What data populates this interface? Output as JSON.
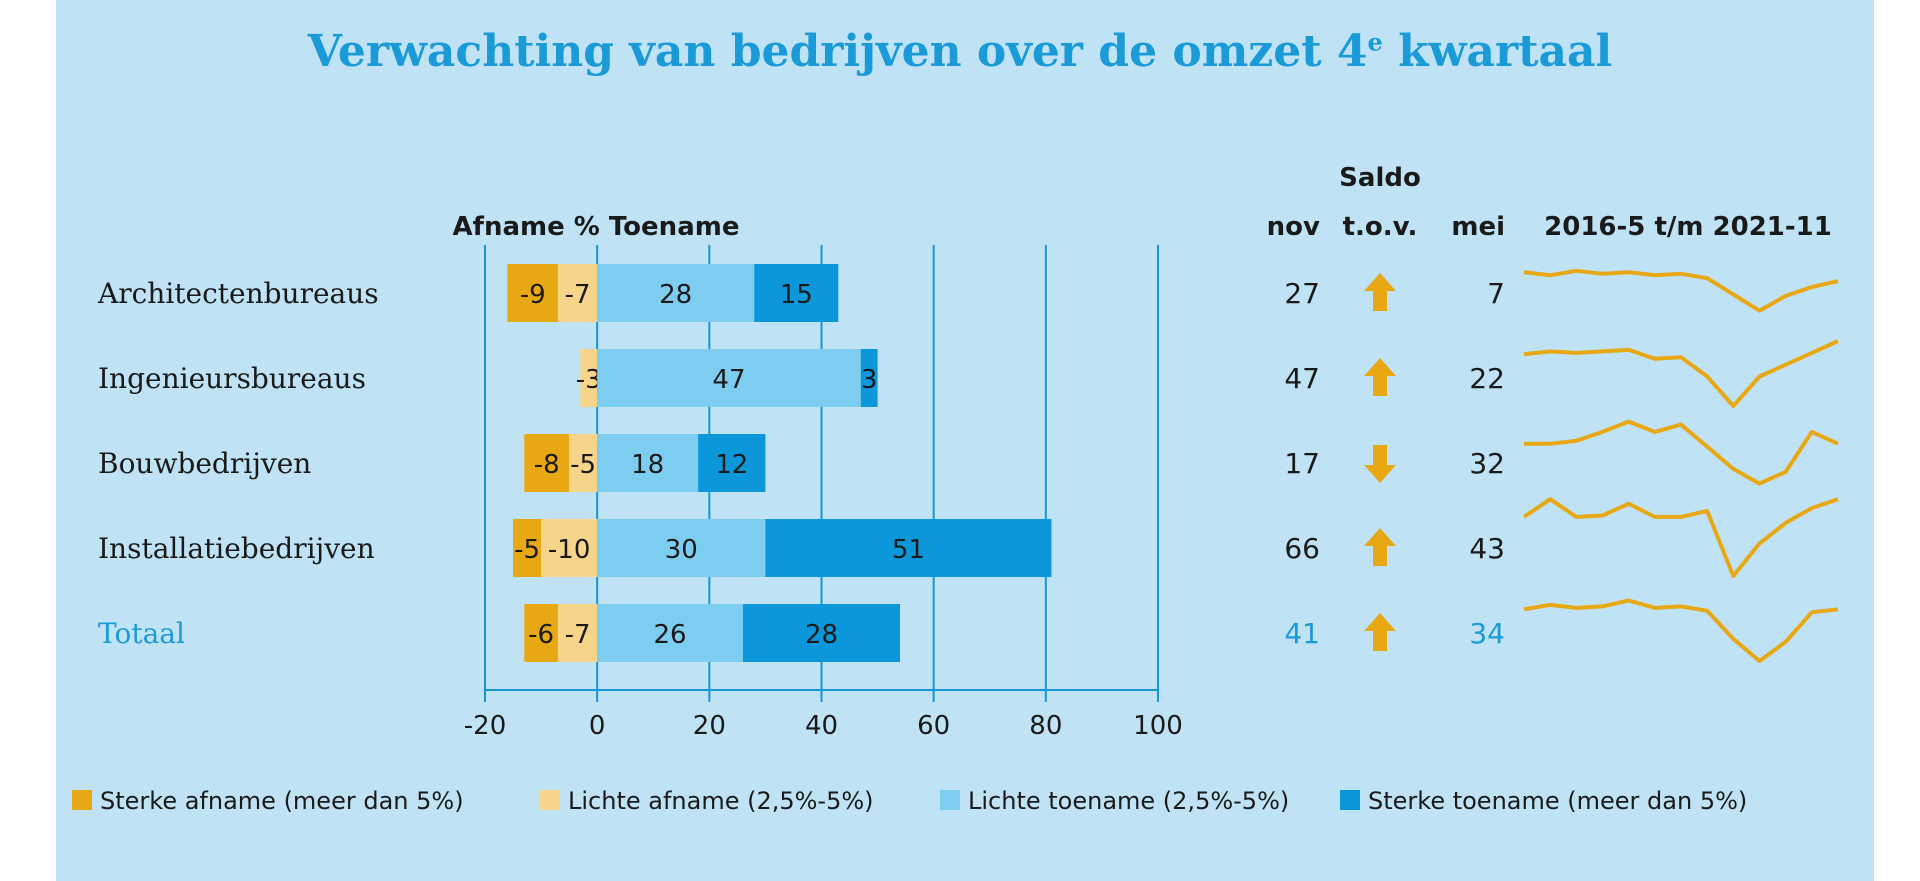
{
  "chart_data": {
    "type": "bar",
    "title": "Verwachting van bedrijven over de omzet 4",
    "title_sup": "e",
    "title_tail": " kwartaal",
    "axis_header": "Afname % Toename",
    "categories": [
      "Architectenbureaus",
      "Ingenieursbureaus",
      "Bouwbedrijven",
      "Installatiebedrijven",
      "Totaal"
    ],
    "xlim": [
      -20,
      100
    ],
    "xticks": [
      -20,
      0,
      20,
      40,
      60,
      80,
      100
    ],
    "series": [
      {
        "name": "Sterke afname (meer dan 5%)",
        "color": "#e8a814",
        "values": [
          -9,
          0,
          -8,
          -5,
          -6
        ]
      },
      {
        "name": "Lichte afname (2,5%-5%)",
        "color": "#f6d58a",
        "values": [
          -7,
          -3,
          -5,
          -10,
          -7
        ]
      },
      {
        "name": "Lichte toename (2,5%-5%)",
        "color": "#7ccdf0",
        "values": [
          28,
          47,
          18,
          30,
          26
        ]
      },
      {
        "name": "Sterke toename (meer dan 5%)",
        "color": "#0b97d9",
        "values": [
          15,
          3,
          12,
          51,
          28
        ]
      }
    ],
    "data_labels": [
      [
        "-9",
        "-7",
        "28",
        "15"
      ],
      [
        "",
        "-3",
        "47",
        "3"
      ],
      [
        "-8",
        "-5",
        "18",
        "12"
      ],
      [
        "-5",
        "-10",
        "30",
        "51"
      ],
      [
        "-6",
        "-7",
        "26",
        "28"
      ]
    ],
    "saldo": {
      "header": "Saldo",
      "col_nov": "nov",
      "col_tov": "t.o.v.",
      "col_mei": "mei",
      "nov": [
        "27",
        "47",
        "17",
        "66",
        "41"
      ],
      "direction": [
        "up",
        "up",
        "down",
        "up",
        "up"
      ],
      "mei": [
        "7",
        "22",
        "32",
        "43",
        "34"
      ],
      "arrow_color": "#e8a814"
    },
    "sparklines": {
      "header": "2016-5 t/m 2021-11",
      "color": "#e8a814",
      "series": [
        [
          33,
          31,
          34,
          32,
          33,
          31,
          32,
          29,
          18,
          7,
          17,
          23,
          27
        ],
        [
          35,
          37,
          36,
          37,
          38,
          32,
          33,
          20,
          0,
          20,
          28,
          36,
          44
        ],
        [
          32,
          32,
          34,
          40,
          47,
          40,
          45,
          30,
          15,
          5,
          13,
          40,
          32
        ],
        [
          40,
          52,
          40,
          41,
          49,
          40,
          40,
          44,
          0,
          22,
          36,
          46,
          52
        ],
        [
          35,
          38,
          36,
          37,
          41,
          36,
          37,
          34,
          15,
          0,
          13,
          33,
          35
        ]
      ],
      "ylim": [
        0,
        55
      ]
    }
  }
}
